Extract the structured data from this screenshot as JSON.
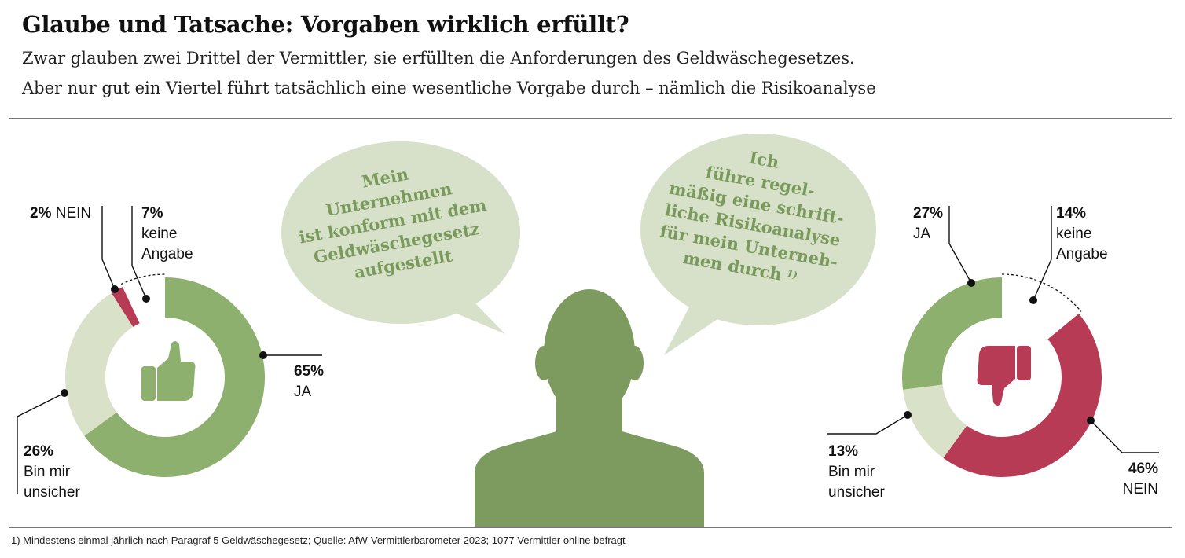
{
  "title": "Glaube und Tatsache: Vorgaben wirklich erfüllt?",
  "subtitle_line1": "Zwar glauben zwei Drittel der Vermittler, sie erfüllten die Anforderungen des Geldwäschegesetzes.",
  "subtitle_line2": "Aber nur gut ein Viertel führt tatsächlich eine wesentliche Vorgabe durch – nämlich die Risikoanalyse",
  "footnote": "1) Mindestens einmal jährlich nach Paragraf 5 Geldwäschegesetz; Quelle: AfW-Vermittlerbarometer 2023; 1077 Vermittler online befragt",
  "bubble_left_lines": [
    "Mein",
    "Unternehmen",
    "ist konform mit dem",
    "Geldwäschegesetz",
    "aufgestellt"
  ],
  "bubble_right_lines": [
    "Ich",
    "führe regel-",
    "mäßig eine schrift-",
    "liche Risikoanalyse",
    "für mein Unterneh-",
    "men durch"
  ],
  "bubble_right_footnote_mark": "1)",
  "colors": {
    "green": "#8db06e",
    "light_green": "#d9e2c9",
    "red": "#b83b56",
    "person": "#7d9a5f",
    "bubble": "#d7e0c8",
    "bubble_text": "#7a9a5c"
  },
  "icons": {
    "left": "thumbs-up-icon",
    "right": "thumbs-down-icon",
    "center": "person-silhouette-icon"
  },
  "chart_data": [
    {
      "type": "pie",
      "variant": "donut",
      "categories": [
        "JA",
        "Bin mir unsicher",
        "NEIN",
        "keine Angabe"
      ],
      "values": [
        65,
        26,
        2,
        7
      ],
      "labels": {
        "ja": {
          "pct": "65%",
          "text": "JA"
        },
        "unsicher": {
          "pct": "26%",
          "text1": "Bin mir",
          "text2": "unsicher"
        },
        "nein": {
          "pct": "2%",
          "text": "NEIN"
        },
        "keine": {
          "pct": "7%",
          "text1": "keine",
          "text2": "Angabe"
        }
      }
    },
    {
      "type": "pie",
      "variant": "donut",
      "categories": [
        "JA",
        "keine Angabe",
        "NEIN",
        "Bin mir unsicher"
      ],
      "values": [
        27,
        14,
        46,
        13
      ],
      "labels": {
        "ja": {
          "pct": "27%",
          "text": "JA"
        },
        "keine": {
          "pct": "14%",
          "text1": "keine",
          "text2": "Angabe"
        },
        "nein": {
          "pct": "46%",
          "text": "NEIN"
        },
        "unsicher": {
          "pct": "13%",
          "text1": "Bin mir",
          "text2": "unsicher"
        }
      }
    }
  ]
}
